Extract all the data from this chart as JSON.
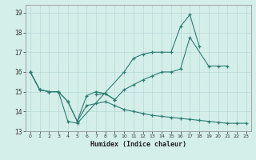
{
  "xlabel": "Humidex (Indice chaleur)",
  "bg_color": "#d4eeea",
  "line_color": "#2e7d72",
  "grid_color": "#b8d8d4",
  "xlim": [
    -0.5,
    23.5
  ],
  "ylim": [
    13.0,
    19.4
  ],
  "yticks": [
    13,
    14,
    15,
    16,
    17,
    18,
    19
  ],
  "xticks": [
    0,
    1,
    2,
    3,
    4,
    5,
    6,
    7,
    8,
    9,
    10,
    11,
    12,
    13,
    14,
    15,
    16,
    17,
    18,
    19,
    20,
    21,
    22,
    23
  ],
  "line1_x": [
    0,
    1,
    2,
    3,
    4,
    5,
    10,
    11,
    12,
    13,
    14,
    15,
    16,
    17,
    18
  ],
  "line1_y": [
    16.0,
    15.1,
    15.0,
    15.0,
    13.5,
    13.4,
    16.0,
    16.7,
    16.9,
    17.0,
    17.0,
    17.0,
    18.3,
    18.9,
    17.3
  ],
  "line2_x": [
    7,
    8,
    9
  ],
  "line2_y": [
    14.85,
    14.9,
    14.6
  ],
  "line3_x": [
    0,
    1,
    2,
    3,
    4,
    5,
    6,
    7,
    8,
    9,
    10,
    11,
    12,
    13,
    14,
    15,
    16,
    17,
    19,
    20,
    21
  ],
  "line3_y": [
    16.0,
    15.1,
    15.0,
    15.0,
    14.5,
    13.5,
    14.8,
    15.0,
    14.9,
    14.6,
    15.1,
    15.35,
    15.6,
    15.8,
    16.0,
    16.0,
    16.15,
    17.75,
    16.3,
    16.3,
    16.3
  ],
  "line4_x": [
    0,
    1,
    2,
    3,
    4,
    5,
    6,
    7,
    8,
    9,
    10,
    11,
    12,
    13,
    14,
    15,
    16,
    17,
    18,
    19,
    20,
    21,
    22,
    23
  ],
  "line4_y": [
    16.0,
    15.1,
    15.0,
    15.0,
    14.5,
    13.5,
    14.3,
    14.4,
    14.5,
    14.3,
    14.1,
    14.0,
    13.9,
    13.8,
    13.75,
    13.7,
    13.65,
    13.6,
    13.55,
    13.5,
    13.45,
    13.4,
    13.4,
    13.4
  ]
}
